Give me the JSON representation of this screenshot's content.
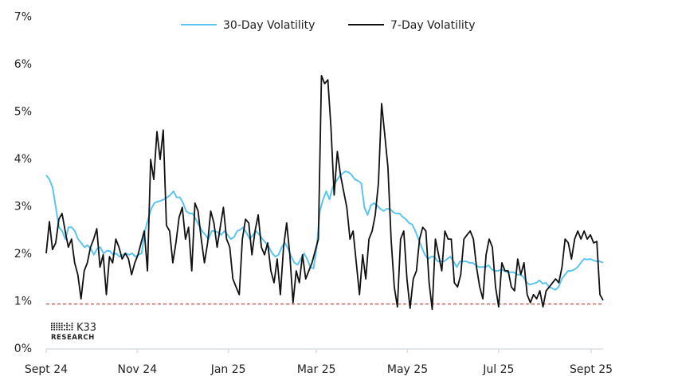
{
  "chart_data": {
    "type": "line",
    "title": "",
    "xlabel": "",
    "ylabel": "",
    "x_range": [
      "2024-09-01",
      "2025-09-09"
    ],
    "ylim": [
      0,
      7
    ],
    "y_ticks": [
      0,
      1,
      2,
      3,
      4,
      5,
      6,
      7
    ],
    "y_tick_labels": [
      "0%",
      "1%",
      "2%",
      "3%",
      "4%",
      "5%",
      "6%",
      "7%"
    ],
    "x_ticks": [
      "2024-09-01",
      "2024-11-01",
      "2025-01-01",
      "2025-03-01",
      "2025-05-01",
      "2025-07-01",
      "2025-09-01"
    ],
    "x_tick_labels": [
      "Sept 24",
      "Nov 24",
      "Jan 25",
      "Mar 25",
      "May 25",
      "Jul 25",
      "Sept 25"
    ],
    "grid": false,
    "legend_position": "top-center",
    "reference_line": {
      "value": 0.93,
      "color": "#c0392b",
      "style": "dashed"
    },
    "series": [
      {
        "name": "30-Day Volatility",
        "color": "#5bc4ef",
        "start_date": "2024-09-01",
        "end_date": "2025-09-09",
        "values": [
          3.65,
          3.56,
          3.39,
          2.97,
          2.55,
          2.47,
          2.3,
          2.55,
          2.55,
          2.47,
          2.3,
          2.22,
          2.13,
          2.17,
          2.1,
          1.97,
          2.1,
          2.13,
          2.0,
          2.05,
          2.05,
          1.97,
          2.0,
          1.93,
          1.97,
          2.0,
          1.97,
          2.0,
          1.93,
          1.97,
          2.0,
          2.47,
          2.72,
          2.94,
          3.06,
          3.09,
          3.11,
          3.14,
          3.18,
          3.23,
          3.31,
          3.18,
          3.18,
          3.06,
          2.89,
          2.84,
          2.84,
          2.72,
          2.59,
          2.47,
          2.39,
          2.3,
          2.47,
          2.47,
          2.44,
          2.39,
          2.47,
          2.39,
          2.3,
          2.34,
          2.47,
          2.5,
          2.55,
          2.42,
          2.3,
          2.39,
          2.47,
          2.39,
          2.3,
          2.22,
          2.13,
          2.0,
          1.93,
          1.97,
          2.13,
          2.22,
          2.1,
          1.93,
          1.8,
          1.76,
          1.88,
          2.0,
          1.88,
          1.71,
          1.68,
          2.13,
          2.89,
          3.14,
          3.31,
          3.14,
          3.39,
          3.51,
          3.61,
          3.68,
          3.73,
          3.71,
          3.65,
          3.56,
          3.53,
          3.48,
          2.97,
          2.81,
          3.01,
          3.06,
          3.01,
          2.94,
          2.89,
          2.94,
          2.94,
          2.87,
          2.84,
          2.84,
          2.77,
          2.72,
          2.64,
          2.61,
          2.47,
          2.3,
          2.13,
          1.97,
          1.88,
          1.93,
          1.93,
          1.83,
          1.83,
          1.83,
          1.88,
          1.93,
          1.83,
          1.71,
          1.83,
          1.83,
          1.83,
          1.8,
          1.8,
          1.75,
          1.71,
          1.71,
          1.71,
          1.75,
          1.66,
          1.63,
          1.63,
          1.66,
          1.63,
          1.6,
          1.6,
          1.6,
          1.55,
          1.55,
          1.5,
          1.38,
          1.34,
          1.36,
          1.38,
          1.43,
          1.36,
          1.38,
          1.29,
          1.26,
          1.23,
          1.29,
          1.46,
          1.55,
          1.63,
          1.63,
          1.66,
          1.71,
          1.8,
          1.88,
          1.87,
          1.88,
          1.85,
          1.83,
          1.83,
          1.8
        ]
      },
      {
        "name": "7-Day Volatility",
        "color": "#111111",
        "start_date": "2024-09-01",
        "end_date": "2025-09-09",
        "values": [
          2.0,
          2.67,
          2.08,
          2.22,
          2.72,
          2.84,
          2.47,
          2.13,
          2.3,
          1.8,
          1.55,
          1.04,
          1.63,
          1.8,
          2.13,
          2.3,
          2.52,
          1.71,
          1.97,
          1.13,
          1.93,
          1.8,
          2.3,
          2.13,
          1.88,
          2.0,
          1.88,
          1.55,
          1.8,
          1.97,
          2.22,
          2.47,
          1.63,
          3.98,
          3.56,
          4.57,
          3.98,
          4.6,
          2.59,
          2.47,
          1.8,
          2.22,
          2.76,
          2.97,
          2.3,
          2.55,
          1.63,
          3.06,
          2.89,
          2.3,
          1.8,
          2.22,
          2.89,
          2.64,
          2.13,
          2.55,
          2.97,
          2.3,
          2.13,
          1.46,
          1.29,
          1.13,
          2.3,
          2.72,
          2.64,
          1.97,
          2.47,
          2.81,
          2.13,
          1.97,
          2.22,
          1.63,
          1.38,
          1.88,
          1.13,
          2.13,
          2.64,
          1.97,
          0.96,
          1.63,
          1.38,
          1.97,
          1.46,
          1.63,
          1.8,
          2.05,
          2.3,
          5.75,
          5.58,
          5.66,
          4.66,
          3.23,
          4.15,
          3.65,
          3.31,
          2.97,
          2.3,
          2.47,
          1.8,
          1.13,
          1.97,
          1.46,
          2.3,
          2.47,
          2.81,
          3.48,
          5.16,
          4.49,
          3.82,
          2.3,
          1.29,
          0.87,
          2.3,
          2.47,
          1.46,
          0.84,
          1.46,
          1.63,
          2.3,
          2.55,
          2.47,
          1.38,
          0.82,
          2.3,
          1.97,
          1.63,
          2.47,
          2.3,
          2.3,
          1.38,
          1.29,
          1.55,
          2.3,
          2.39,
          2.47,
          2.3,
          1.71,
          1.29,
          1.04,
          1.97,
          2.3,
          2.13,
          1.29,
          0.87,
          1.8,
          1.63,
          1.63,
          1.29,
          1.21,
          1.88,
          1.55,
          1.8,
          1.13,
          0.96,
          1.13,
          1.04,
          1.21,
          0.87,
          1.21,
          1.29,
          1.38,
          1.46,
          1.38,
          1.71,
          2.3,
          2.22,
          1.88,
          2.3,
          2.47,
          2.3,
          2.47,
          2.3,
          2.39,
          2.22,
          2.25,
          1.13,
          1.01
        ]
      }
    ]
  },
  "logo": {
    "text": "K33",
    "subtext": "RESEARCH"
  }
}
